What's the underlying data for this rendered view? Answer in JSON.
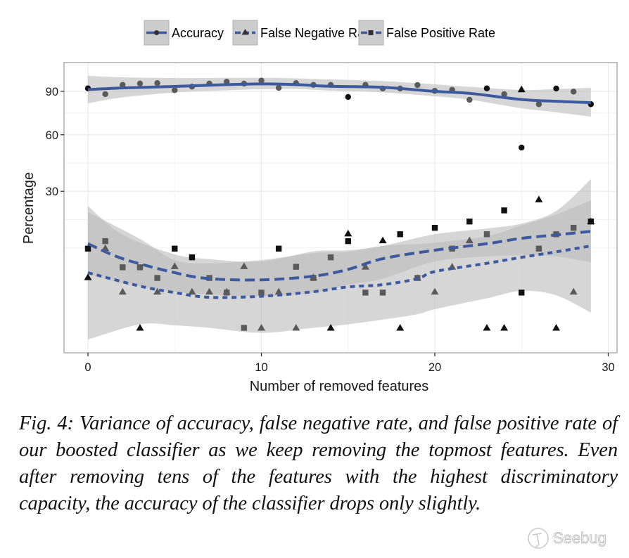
{
  "chart_data": {
    "type": "scatter",
    "title": "",
    "xlabel": "Number of removed features",
    "ylabel": "Percentage",
    "x_scale": "linear",
    "y_scale": "sqrt",
    "xlim": [
      -1.4,
      30.5
    ],
    "ylim": [
      -1.2,
      111
    ],
    "x_ticks": [
      0,
      10,
      20,
      30
    ],
    "x_tick_labels": [
      "0",
      "10",
      "20",
      "30"
    ],
    "y_ticks": [
      30,
      60,
      90
    ],
    "y_tick_labels": [
      "30",
      "60",
      "90"
    ],
    "grid": true,
    "legend_position": "top",
    "legend": [
      {
        "label": "Accuracy",
        "marker": "circle",
        "line": "solid"
      },
      {
        "label": "False Negative Rate",
        "marker": "triangle",
        "line": "longdash"
      },
      {
        "label": "False Positive Rate",
        "marker": "square",
        "line": "dashed"
      }
    ],
    "series": [
      {
        "name": "Accuracy",
        "marker": "circle",
        "x": [
          0,
          1,
          2,
          3,
          4,
          5,
          6,
          7,
          8,
          9,
          10,
          11,
          12,
          13,
          14,
          15,
          16,
          17,
          18,
          19,
          20,
          21,
          22,
          23,
          24,
          25,
          26,
          27,
          28,
          29
        ],
        "values": [
          92.3,
          87.9,
          95.0,
          96.1,
          96.4,
          90.9,
          93.6,
          96.0,
          97.5,
          96.0,
          98.4,
          92.7,
          96.4,
          95.0,
          95.0,
          85.8,
          95.0,
          92.2,
          92.2,
          94.9,
          90.4,
          91.2,
          83.7,
          92.3,
          87.9,
          52.3,
          80.5,
          92.2,
          89.8,
          80.5
        ],
        "dark": [
          1,
          0,
          0,
          0,
          0,
          0,
          0,
          0,
          0,
          0,
          0,
          0,
          0,
          0,
          0,
          1,
          0,
          0,
          0,
          0,
          0,
          0,
          0,
          1,
          0,
          1,
          0,
          1,
          0,
          1
        ],
        "smooth": {
          "x": [
            0,
            2,
            5,
            8,
            10,
            12,
            14,
            17,
            20,
            22,
            25,
            27,
            29
          ],
          "values": [
            91.4,
            92.6,
            93.8,
            95.2,
            95.8,
            95.2,
            93.9,
            93.1,
            90.0,
            88.5,
            83.9,
            82.6,
            81.6
          ],
          "lower": [
            81.1,
            85.5,
            89.1,
            90.8,
            91.6,
            91.8,
            90.6,
            89.2,
            86.3,
            83.8,
            77.6,
            74.8,
            71.8
          ],
          "upper": [
            102.2,
            101.0,
            100.4,
            100.5,
            100.6,
            100.2,
            99.3,
            98.0,
            95.4,
            93.5,
            91.1,
            91.8,
            92.7
          ]
        }
      },
      {
        "name": "False Negative Rate",
        "marker": "triangle",
        "x": [
          0,
          1,
          2,
          3,
          4,
          5,
          6,
          7,
          8,
          9,
          10,
          11,
          12,
          13,
          14,
          15,
          16,
          17,
          18,
          19,
          20,
          21,
          22,
          23,
          24,
          25,
          26,
          27,
          28,
          29
        ],
        "values": [
          4.1,
          10.2,
          2.1,
          0,
          2.1,
          6.1,
          2.1,
          2.1,
          2.1,
          6.1,
          0,
          2.1,
          0,
          4.1,
          0,
          14.3,
          6.0,
          12.3,
          0,
          4.0,
          2.1,
          6.0,
          12.3,
          0,
          0,
          91.5,
          26.5,
          0,
          2.1,
          18.2
        ],
        "dark": [
          1,
          0,
          0,
          1,
          0,
          0,
          0,
          0,
          0,
          0,
          0,
          0,
          0,
          0,
          1,
          1,
          0,
          1,
          1,
          0,
          0,
          0,
          0,
          1,
          1,
          1,
          1,
          1,
          0,
          1
        ],
        "smooth": {
          "x": [
            0,
            2,
            5,
            7,
            10,
            13,
            15,
            17,
            20,
            23,
            25,
            27,
            29
          ],
          "values": [
            11.4,
            7.7,
            4.9,
            3.9,
            3.7,
            4.3,
            5.5,
            7.7,
            9.7,
            11.4,
            12.9,
            13.9,
            15.0
          ],
          "lower": [
            4.7,
            3.2,
            2.1,
            1.8,
            1.6,
            2.0,
            3.0,
            3.9,
            7.1,
            8.2,
            8.5,
            8.2,
            6.9
          ],
          "upper": [
            23.9,
            14.0,
            8.7,
            7.6,
            7.1,
            9.4,
            9.7,
            10.8,
            14.1,
            15.9,
            17.5,
            22.0,
            35.6
          ]
        }
      },
      {
        "name": "False Positive Rate",
        "marker": "square",
        "x": [
          0,
          1,
          2,
          3,
          4,
          5,
          6,
          7,
          8,
          9,
          10,
          11,
          12,
          13,
          14,
          15,
          16,
          17,
          18,
          19,
          20,
          21,
          22,
          23,
          24,
          25,
          26,
          27,
          28,
          29
        ],
        "values": [
          10.1,
          12.1,
          5.9,
          5.9,
          4.0,
          10.1,
          8.0,
          4.0,
          2.0,
          0,
          2.0,
          10.1,
          6.0,
          4.0,
          8.0,
          12.1,
          2.0,
          2.0,
          14.1,
          4.0,
          16.1,
          10.1,
          18.2,
          14.1,
          22.2,
          2.0,
          10.1,
          14.1,
          16.1,
          18.2
        ],
        "dark": [
          1,
          0,
          0,
          0,
          0,
          1,
          1,
          0,
          0,
          0,
          0,
          1,
          0,
          0,
          0,
          1,
          0,
          0,
          1,
          0,
          1,
          0,
          1,
          0,
          1,
          1,
          0,
          0,
          0,
          1
        ],
        "smooth": {
          "x": [
            0,
            3,
            5,
            7,
            10,
            13,
            15,
            17,
            19,
            20,
            23,
            25,
            27,
            29
          ],
          "values": [
            4.9,
            2.8,
            2.0,
            1.5,
            1.6,
            2.1,
            2.7,
            3.0,
            3.9,
            5.1,
            6.7,
            8.0,
            9.3,
            10.8
          ],
          "lower": [
            -0.22,
            0.02,
            0.01,
            0.0,
            -0.04,
            0.0,
            0.02,
            0.11,
            0.3,
            0.56,
            1.4,
            2.2,
            1.7,
            0.37
          ],
          "upper": [
            21.6,
            12.7,
            7.4,
            6.7,
            7.4,
            9.0,
            9.3,
            10.8,
            11.3,
            11.7,
            13.5,
            16.9,
            20.7,
            26.2
          ]
        }
      }
    ],
    "colors": {
      "line": "#3d5a9e",
      "band": "#bdbdbd",
      "point_dark": "#111111",
      "point_light": "#5a5a5a",
      "grid": "#ebebeb",
      "panel_border": "#9a9a9a"
    }
  },
  "caption": "Fig. 4: Variance of accuracy, false negative rate, and false positive rate of our boosted classifier as we keep removing the topmost features. Even after removing tens of the features with the highest discriminatory capacity, the accuracy of the classifier drops only slightly.",
  "watermark": {
    "text": "Seebug",
    "icon": "seebug-logo-icon"
  }
}
